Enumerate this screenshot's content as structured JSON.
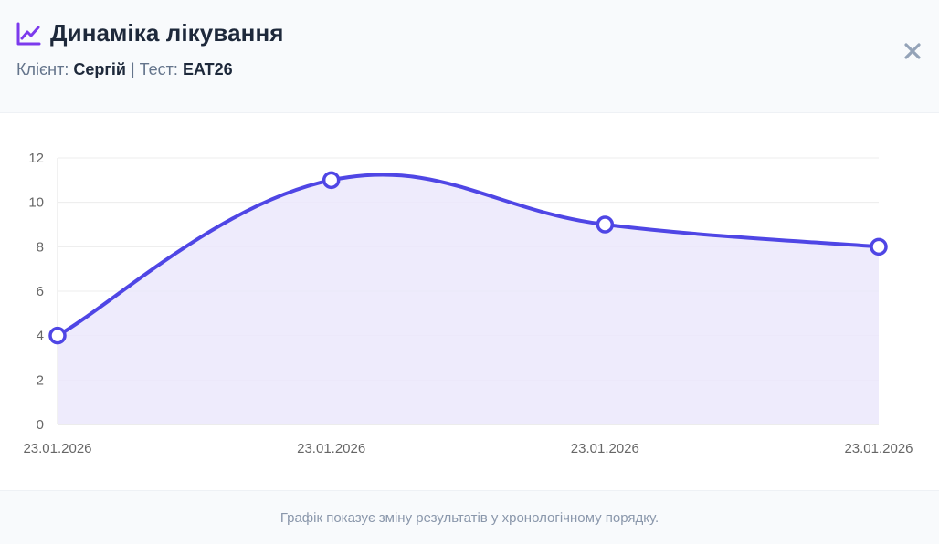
{
  "header": {
    "title": "Динаміка лікування",
    "client_label": "Клієнт:",
    "client_name": "Сергій",
    "separator": "|",
    "test_label": "Тест:",
    "test_name": "EAT26",
    "title_icon": "line-chart-icon",
    "close_icon": "close-icon"
  },
  "colors": {
    "accent": "#4f46e5",
    "icon_purple": "#7c3aed",
    "fill": "#ebe8fc"
  },
  "chart_data": {
    "type": "area",
    "categories": [
      "23.01.2026",
      "23.01.2026",
      "23.01.2026",
      "23.01.2026"
    ],
    "series": [
      {
        "values": [
          4,
          11,
          9,
          8
        ]
      }
    ],
    "ylim": [
      0,
      12
    ],
    "yticks": [
      "0",
      "2",
      "4",
      "6",
      "8",
      "10",
      "12"
    ],
    "grid": true,
    "smooth": true,
    "markers": true
  },
  "footer": {
    "text": "Графік показує зміну результатів у хронологічному порядку."
  }
}
